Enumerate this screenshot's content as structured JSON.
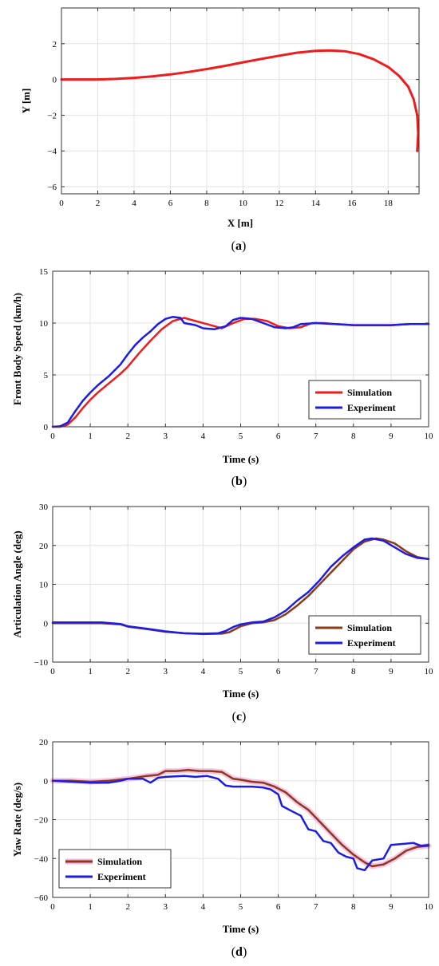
{
  "chart_data": [
    {
      "type": "line",
      "caption_open": "(",
      "caption_letter": "a",
      "caption_close": ")",
      "xlabel": "X [m]",
      "ylabel": "Y [m]",
      "xlim": [
        0,
        19.7
      ],
      "ylim": [
        -6.4,
        4
      ],
      "xticks": [
        0,
        2,
        4,
        6,
        8,
        10,
        12,
        14,
        16,
        18
      ],
      "yticks": [
        -6,
        -4,
        -2,
        0,
        2
      ],
      "grid": true,
      "legend": null,
      "series": [
        {
          "color": "#ee1c1c",
          "width": 3,
          "shadow": false,
          "x": [
            0,
            1,
            2,
            3,
            4,
            5,
            6,
            7,
            8,
            9,
            10,
            11,
            12,
            13,
            14,
            14.8,
            15.6,
            16.4,
            17.2,
            18.0,
            18.6,
            19.1,
            19.4,
            19.6,
            19.65,
            19.6
          ],
          "y": [
            0,
            0,
            0,
            0.03,
            0.09,
            0.17,
            0.28,
            0.42,
            0.58,
            0.76,
            0.96,
            1.15,
            1.33,
            1.5,
            1.6,
            1.62,
            1.58,
            1.42,
            1.13,
            0.7,
            0.2,
            -0.4,
            -1.1,
            -2.0,
            -3.0,
            -4.0
          ]
        }
      ]
    },
    {
      "type": "line",
      "caption_open": "(",
      "caption_letter": "b",
      "caption_close": ")",
      "xlabel": "Time (s)",
      "ylabel": "Front Body Speed (km/h)",
      "xlim": [
        0,
        10
      ],
      "ylim": [
        0,
        15
      ],
      "xticks": [
        0,
        1,
        2,
        3,
        4,
        5,
        6,
        7,
        8,
        9,
        10
      ],
      "yticks": [
        0,
        5,
        10,
        15
      ],
      "grid": true,
      "legend": "bottom-right",
      "series": [
        {
          "name": "Simulation",
          "color": "#ee1c1c",
          "width": 2.5,
          "shadow": false,
          "x": [
            0,
            0.2,
            0.4,
            0.6,
            0.8,
            1.0,
            1.2,
            1.5,
            1.8,
            2.0,
            2.3,
            2.6,
            2.9,
            3.2,
            3.5,
            3.8,
            4.2,
            4.5,
            4.8,
            5.1,
            5.4,
            5.7,
            6.0,
            6.3,
            6.6,
            6.9,
            7.2,
            7.5,
            8,
            8.5,
            9,
            9.5,
            10
          ],
          "y": [
            0,
            0,
            0.2,
            0.9,
            1.8,
            2.6,
            3.3,
            4.2,
            5.1,
            5.8,
            7.1,
            8.3,
            9.4,
            10.2,
            10.5,
            10.2,
            9.8,
            9.5,
            10.0,
            10.4,
            10.4,
            10.2,
            9.7,
            9.5,
            9.6,
            10.0,
            10.0,
            9.9,
            9.8,
            9.8,
            9.8,
            9.9,
            9.9
          ]
        },
        {
          "name": "Experiment",
          "color": "#1c1ce6",
          "width": 2.5,
          "shadow": false,
          "x": [
            0,
            0.2,
            0.4,
            0.6,
            0.8,
            1.0,
            1.2,
            1.5,
            1.8,
            2.0,
            2.2,
            2.4,
            2.6,
            2.8,
            3.0,
            3.2,
            3.4,
            3.5,
            3.8,
            4.0,
            4.3,
            4.6,
            4.8,
            5.0,
            5.3,
            5.6,
            5.9,
            6.2,
            6.4,
            6.6,
            7.0,
            7.5,
            8,
            8.5,
            9,
            9.5,
            10
          ],
          "y": [
            0,
            0.05,
            0.4,
            1.5,
            2.5,
            3.3,
            4.0,
            4.9,
            6.0,
            7.0,
            7.9,
            8.6,
            9.2,
            9.9,
            10.4,
            10.6,
            10.5,
            10.0,
            9.8,
            9.5,
            9.4,
            9.7,
            10.3,
            10.5,
            10.4,
            10.0,
            9.6,
            9.5,
            9.6,
            9.9,
            10.0,
            9.9,
            9.8,
            9.8,
            9.8,
            9.9,
            9.9
          ]
        }
      ]
    },
    {
      "type": "line",
      "caption_open": "(",
      "caption_letter": "c",
      "caption_close": ")",
      "xlabel": "Time (s)",
      "ylabel": "Articulation Angle (deg)",
      "xlim": [
        0,
        10
      ],
      "ylim": [
        -10,
        30
      ],
      "xticks": [
        0,
        1,
        2,
        3,
        4,
        5,
        6,
        7,
        8,
        9,
        10
      ],
      "yticks": [
        -10,
        0,
        10,
        20,
        30
      ],
      "grid": true,
      "legend": "bottom-right",
      "series": [
        {
          "name": "Simulation",
          "color": "#8b3a1a",
          "width": 2.5,
          "shadow": false,
          "x": [
            0,
            0.5,
            1.0,
            1.3,
            1.8,
            2.0,
            2.5,
            3.0,
            3.5,
            4.0,
            4.5,
            4.7,
            5.0,
            5.3,
            5.6,
            5.9,
            6.2,
            6.5,
            6.8,
            7.1,
            7.4,
            7.7,
            8.0,
            8.3,
            8.6,
            8.8,
            9.1,
            9.4,
            9.7,
            10
          ],
          "y": [
            0,
            0,
            0,
            0,
            -0.3,
            -0.9,
            -1.5,
            -2.2,
            -2.6,
            -2.8,
            -2.7,
            -2.3,
            -0.8,
            0,
            0.2,
            0.8,
            2.3,
            4.5,
            7.0,
            10.0,
            13.0,
            16.0,
            19.0,
            21.0,
            21.8,
            21.5,
            20.5,
            18.5,
            17.0,
            16.5
          ]
        },
        {
          "name": "Experiment",
          "color": "#1c1ce6",
          "width": 2.5,
          "shadow": false,
          "x": [
            0,
            0.5,
            1.0,
            1.3,
            1.8,
            2.0,
            2.5,
            3.0,
            3.5,
            4.0,
            4.4,
            4.6,
            4.8,
            5.0,
            5.3,
            5.6,
            5.9,
            6.2,
            6.5,
            6.8,
            7.1,
            7.4,
            7.7,
            8.0,
            8.3,
            8.5,
            8.8,
            9.1,
            9.4,
            9.7,
            10
          ],
          "y": [
            0.2,
            0.2,
            0.2,
            0.2,
            -0.2,
            -0.8,
            -1.4,
            -2.1,
            -2.6,
            -2.7,
            -2.6,
            -2.0,
            -1.0,
            -0.3,
            0.2,
            0.4,
            1.5,
            3.2,
            5.8,
            8.0,
            11.0,
            14.5,
            17.2,
            19.5,
            21.5,
            21.8,
            21.2,
            19.5,
            17.8,
            16.8,
            16.5
          ]
        }
      ]
    },
    {
      "type": "line",
      "caption_open": "(",
      "caption_letter": "d",
      "caption_close": ")",
      "xlabel": "Time (s)",
      "ylabel": "Yaw Rate (deg/s)",
      "xlim": [
        0,
        10
      ],
      "ylim": [
        -60,
        20
      ],
      "xticks": [
        0,
        1,
        2,
        3,
        4,
        5,
        6,
        7,
        8,
        9,
        10
      ],
      "yticks": [
        -60,
        -40,
        -20,
        0,
        20
      ],
      "grid": true,
      "legend": "bottom-left",
      "series": [
        {
          "name": "Simulation",
          "color": "#8b3a1a",
          "width": 2.5,
          "shadow": true,
          "shadow_color": "#f4b6e2",
          "x": [
            0,
            0.5,
            1.0,
            1.5,
            2.0,
            2.5,
            2.8,
            3.0,
            3.3,
            3.6,
            3.9,
            4.2,
            4.5,
            4.8,
            5.0,
            5.3,
            5.6,
            5.9,
            6.2,
            6.5,
            6.8,
            7.1,
            7.4,
            7.7,
            8.0,
            8.3,
            8.5,
            8.8,
            9.1,
            9.4,
            9.7,
            10
          ],
          "y": [
            0,
            0,
            -0.5,
            0,
            1.0,
            2.5,
            3.0,
            5.0,
            5.0,
            5.5,
            5.0,
            5.0,
            4.5,
            1.0,
            0.5,
            -0.5,
            -1.0,
            -3.0,
            -6.0,
            -11.0,
            -15.0,
            -21.0,
            -27.0,
            -33.0,
            -38.0,
            -42.0,
            -44.0,
            -43.0,
            -40.0,
            -36.0,
            -34.0,
            -33.5
          ]
        },
        {
          "name": "Experiment",
          "color": "#1c1ce6",
          "width": 2.5,
          "shadow": false,
          "x": [
            0,
            0.5,
            1.0,
            1.5,
            1.8,
            2.0,
            2.4,
            2.6,
            2.8,
            3.0,
            3.5,
            3.8,
            4.1,
            4.4,
            4.6,
            4.8,
            5.0,
            5.3,
            5.6,
            5.8,
            6.0,
            6.1,
            6.2,
            6.4,
            6.6,
            6.8,
            7.0,
            7.2,
            7.4,
            7.6,
            7.8,
            8.0,
            8.1,
            8.3,
            8.5,
            8.8,
            9.0,
            9.3,
            9.6,
            9.8,
            10
          ],
          "y": [
            0,
            -0.5,
            -1.0,
            -1.0,
            0,
            1.0,
            1.0,
            -1.0,
            1.5,
            2.0,
            2.5,
            2.0,
            2.5,
            1.0,
            -2.5,
            -3.0,
            -3.0,
            -3.0,
            -3.5,
            -4.5,
            -7.0,
            -13.0,
            -14.0,
            -16.0,
            -18.0,
            -25.0,
            -26.0,
            -31.0,
            -32.0,
            -37.0,
            -39.0,
            -40.0,
            -45.0,
            -46.0,
            -41.0,
            -40.0,
            -33.0,
            -32.5,
            -32.0,
            -33.5,
            -33.0
          ]
        }
      ]
    }
  ]
}
